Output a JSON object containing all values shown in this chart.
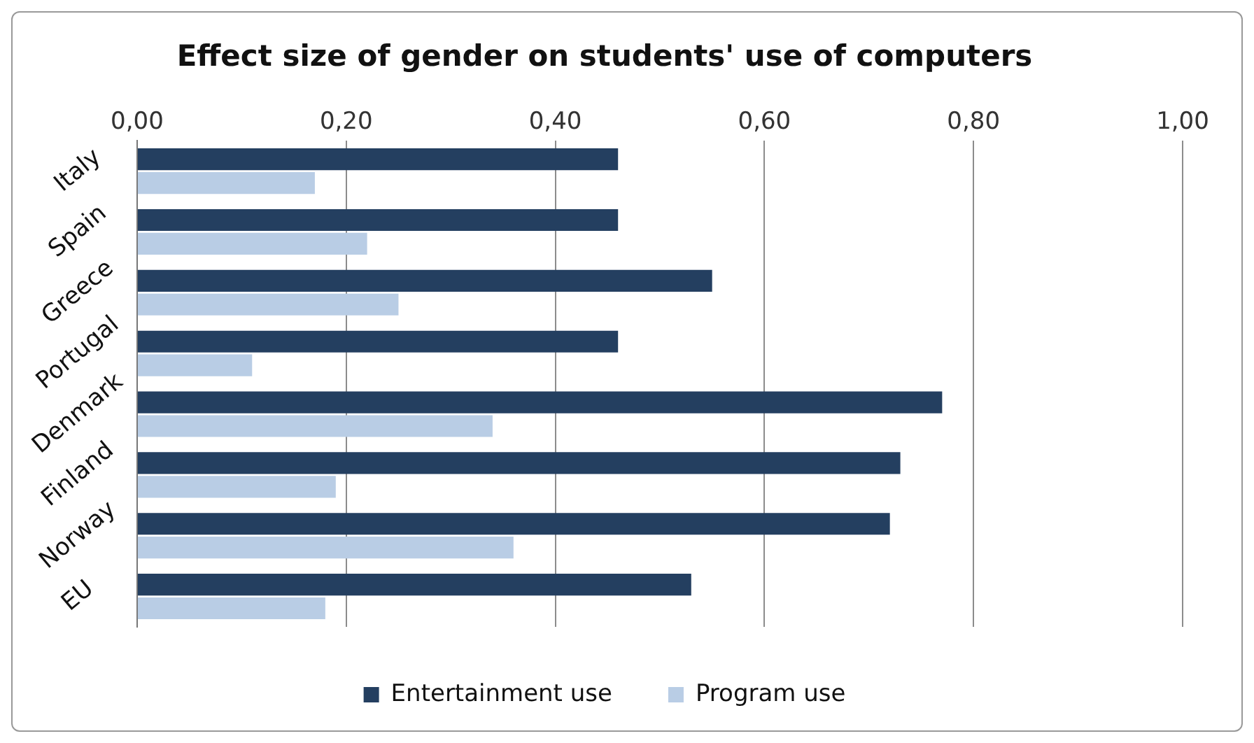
{
  "chart_data": {
    "type": "bar",
    "orientation": "horizontal",
    "title": "Effect size of gender on students' use of computers",
    "categories": [
      "Italy",
      "Spain",
      "Greece",
      "Portugal",
      "Denmark",
      "Finland",
      "Norway",
      "EU"
    ],
    "series": [
      {
        "name": "Entertainment use",
        "color": "#243f60",
        "values": [
          0.46,
          0.46,
          0.55,
          0.46,
          0.77,
          0.73,
          0.72,
          0.53
        ]
      },
      {
        "name": "Program use",
        "color": "#b9cde5",
        "values": [
          0.17,
          0.22,
          0.25,
          0.11,
          0.34,
          0.19,
          0.36,
          0.18
        ]
      }
    ],
    "xlim": [
      0,
      1
    ],
    "xticks": [
      {
        "value": 0,
        "label": "0,00"
      },
      {
        "value": 0.2,
        "label": "0,20"
      },
      {
        "value": 0.4,
        "label": "0,40"
      },
      {
        "value": 0.6,
        "label": "0,60"
      },
      {
        "value": 0.8,
        "label": "0,80"
      },
      {
        "value": 1,
        "label": "1,00"
      }
    ],
    "grid": "x",
    "legend": "bottom"
  }
}
